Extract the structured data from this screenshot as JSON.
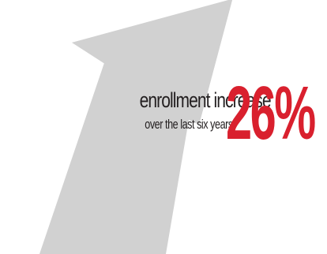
{
  "stat": {
    "headline": "enrollment increase",
    "subline": "over the last six years",
    "value": "26%"
  },
  "colors": {
    "arrow": "#d1d1d1",
    "text": "#231f20",
    "accent": "#d9202e"
  },
  "graphic": {
    "icon": "upward-arrow-icon"
  }
}
